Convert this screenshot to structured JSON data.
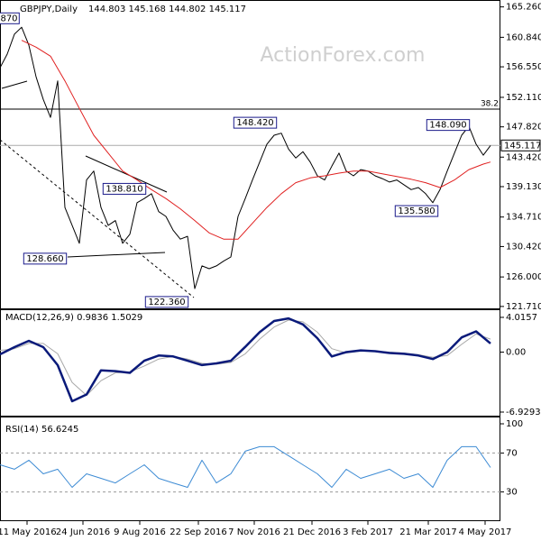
{
  "chart_data": [
    {
      "type": "line",
      "title": "GBPJPY,Daily",
      "ohlc": "144.803 145.168 144.802 145.117",
      "watermark": "ActionForex.com",
      "xlim": [
        0,
        277.5
      ],
      "ylim": [
        121.3,
        166.0
      ],
      "yticks": [
        {
          "value": 165.26,
          "label": "165.260"
        },
        {
          "value": 160.84,
          "label": "160.840"
        },
        {
          "value": 156.55,
          "label": "156.550"
        },
        {
          "value": 152.11,
          "label": "152.110"
        },
        {
          "value": 147.82,
          "label": "147.820"
        },
        {
          "value": 143.42,
          "label": "143.420"
        },
        {
          "value": 139.13,
          "label": "139.130"
        },
        {
          "value": 134.71,
          "label": "134.710"
        },
        {
          "value": 130.42,
          "label": "130.420"
        },
        {
          "value": 126.0,
          "label": "126.000"
        },
        {
          "value": 121.71,
          "label": "121.710"
        }
      ],
      "series": [
        {
          "color": "#000000",
          "width": 1,
          "x": [
            0,
            4,
            8,
            12,
            16,
            20,
            24,
            28,
            32,
            36,
            40,
            44,
            48,
            52,
            56,
            60,
            64,
            68,
            72,
            76,
            80,
            84,
            88,
            92,
            96,
            100,
            104,
            108,
            112,
            116,
            120,
            124,
            128,
            132,
            136,
            140,
            144,
            148,
            152,
            156,
            160,
            164,
            168,
            172,
            176,
            180,
            184,
            188,
            192,
            196,
            200,
            204,
            208,
            212,
            216,
            220,
            224,
            228,
            232,
            236,
            240,
            244,
            248,
            252,
            256,
            260,
            264,
            268,
            272
          ],
          "values": [
            156.4,
            158.4,
            161.3,
            162.3,
            159.7,
            155.1,
            151.8,
            149.2,
            154.5,
            136.1,
            133.5,
            130.9,
            140.1,
            141.4,
            136.1,
            133.5,
            134.2,
            130.9,
            132.2,
            136.8,
            137.4,
            138.1,
            135.5,
            134.8,
            132.8,
            131.5,
            131.9,
            124.3,
            127.6,
            127.2,
            127.6,
            128.3,
            128.9,
            134.8,
            137.4,
            140.1,
            142.7,
            145.3,
            146.6,
            146.9,
            144.6,
            143.3,
            144.2,
            142.7,
            140.7,
            140.1,
            142.1,
            144.0,
            141.4,
            140.7,
            141.6,
            141.4,
            140.7,
            140.3,
            139.8,
            140.1,
            139.4,
            138.7,
            139.0,
            138.1,
            136.8,
            138.7,
            141.4,
            144.0,
            146.6,
            147.9,
            145.3,
            143.7,
            145.1
          ]
        },
        {
          "color": "#e02020",
          "width": 1,
          "x": [
            12,
            20,
            28,
            36,
            44,
            52,
            60,
            68,
            76,
            84,
            92,
            100,
            108,
            116,
            124,
            132,
            140,
            148,
            156,
            164,
            172,
            180,
            188,
            196,
            204,
            212,
            220,
            228,
            236,
            244,
            252,
            260,
            268,
            272
          ],
          "values": [
            160.4,
            159.4,
            158.1,
            154.5,
            150.5,
            146.6,
            144.0,
            141.4,
            140.1,
            138.7,
            137.4,
            135.9,
            134.2,
            132.4,
            131.5,
            131.5,
            133.8,
            136.1,
            138.1,
            139.7,
            140.4,
            140.7,
            141.1,
            141.4,
            141.4,
            141.0,
            140.6,
            140.2,
            139.7,
            139.0,
            140.1,
            141.6,
            142.4,
            142.7
          ]
        }
      ],
      "hlines": [
        {
          "value": 150.4,
          "label": "38.2"
        }
      ],
      "current": {
        "value": 145.117,
        "label": "145.117"
      },
      "annotations": [
        {
          "label": "870",
          "x": 5,
          "value": 163.6
        },
        {
          "label": "148.420",
          "x": 141.5,
          "value": 148.42
        },
        {
          "label": "148.090",
          "x": 248.5,
          "value": 148.09
        },
        {
          "label": "138.810",
          "x": 69,
          "value": 138.81
        },
        {
          "label": "135.580",
          "x": 231,
          "value": 135.58
        },
        {
          "label": "128.660",
          "x": 25,
          "value": 128.66
        },
        {
          "label": "122.360",
          "x": 92.5,
          "value": 122.36
        }
      ]
    },
    {
      "type": "line",
      "title": "MACD(12,26,9) 0.9836 1.5029",
      "xlim": [
        0,
        277.5
      ],
      "ylim": [
        -7.45,
        4.95
      ],
      "yticks": [
        4.0157,
        {
          "value": 0,
          "label": "0.00"
        },
        -6.9293
      ],
      "series": [
        {
          "color": "#a8a8a8",
          "width": 1,
          "x": [
            0,
            8,
            16,
            24,
            32,
            40,
            48,
            56,
            64,
            72,
            80,
            88,
            96,
            104,
            112,
            120,
            128,
            136,
            144,
            152,
            160,
            168,
            176,
            184,
            192,
            200,
            208,
            216,
            224,
            232,
            240,
            248,
            256,
            264,
            272
          ],
          "values": [
            0.2,
            0.4,
            1.0,
            1.0,
            -0.2,
            -3.5,
            -5.0,
            -3.3,
            -2.4,
            -2.3,
            -1.6,
            -0.8,
            -0.5,
            -0.8,
            -1.3,
            -1.4,
            -1.2,
            -0.2,
            1.5,
            2.9,
            3.7,
            3.5,
            2.3,
            0.4,
            -0.1,
            0.1,
            0.1,
            0.0,
            -0.1,
            -0.3,
            -0.6,
            -0.4,
            0.9,
            2.1,
            1.5
          ]
        },
        {
          "color": "#0a1a7a",
          "width": 2.5,
          "x": [
            0,
            8,
            16,
            24,
            32,
            40,
            48,
            56,
            64,
            72,
            80,
            88,
            96,
            104,
            112,
            120,
            128,
            136,
            144,
            152,
            160,
            168,
            176,
            184,
            192,
            200,
            208,
            216,
            224,
            232,
            240,
            248,
            256,
            264,
            272
          ],
          "values": [
            -0.26,
            0.57,
            1.3,
            0.57,
            -1.51,
            -5.68,
            -4.9,
            -2.1,
            -2.2,
            -2.4,
            -1.0,
            -0.4,
            -0.5,
            -1.0,
            -1.5,
            -1.3,
            -1.0,
            0.6,
            2.3,
            3.6,
            3.9,
            3.2,
            1.6,
            -0.5,
            0.0,
            0.2,
            0.1,
            -0.1,
            -0.2,
            -0.4,
            -0.8,
            0.0,
            1.7,
            2.4,
            1.0
          ]
        }
      ]
    },
    {
      "type": "line",
      "title": "RSI(14) 56.6245",
      "xlim": [
        0,
        277.5
      ],
      "ylim": [
        0,
        106.5
      ],
      "yticks": [
        100,
        70,
        30
      ],
      "hlines": [
        {
          "value": 70
        },
        {
          "value": 30
        }
      ],
      "hline_style": "dashed",
      "series": [
        {
          "color": "#3d8bd4",
          "width": 1,
          "x": [
            0,
            8,
            16,
            24,
            32,
            40,
            48,
            56,
            64,
            72,
            80,
            88,
            96,
            104,
            112,
            120,
            128,
            136,
            144,
            152,
            160,
            168,
            176,
            184,
            192,
            200,
            208,
            216,
            224,
            232,
            240,
            248,
            256,
            264,
            272
          ],
          "values": [
            57.9,
            53.3,
            62.6,
            48.6,
            53.3,
            34.7,
            48.6,
            44.0,
            39.3,
            48.6,
            57.9,
            44.0,
            39.3,
            34.7,
            62.6,
            39.3,
            48.6,
            71.9,
            76.5,
            76.5,
            67.2,
            57.9,
            48.6,
            34.7,
            53.3,
            44.0,
            48.6,
            53.3,
            44.0,
            48.6,
            34.7,
            62.6,
            76.5,
            76.5,
            55.1
          ]
        }
      ],
      "xticks": [
        {
          "value": 15,
          "label": "11 May 2016"
        },
        {
          "value": 46,
          "label": "24 Jun 2016"
        },
        {
          "value": 77.5,
          "label": "9 Aug 2016"
        },
        {
          "value": 110,
          "label": "22 Sep 2016"
        },
        {
          "value": 141,
          "label": "7 Nov 2016"
        },
        {
          "value": 173,
          "label": "21 Dec 2016"
        },
        {
          "value": 204,
          "label": "3 Feb 2017"
        },
        {
          "value": 237.5,
          "label": "21 Mar 2017"
        },
        {
          "value": 269,
          "label": "4 May 2017"
        }
      ]
    }
  ]
}
